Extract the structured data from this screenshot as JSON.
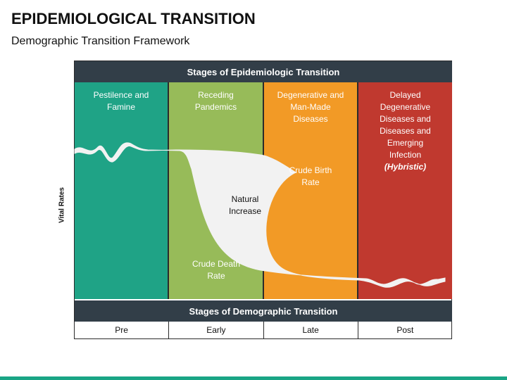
{
  "header": {
    "title": "EPIDEMIOLOGICAL TRANSITION",
    "subtitle": "Demographic Transition Framework"
  },
  "diagram": {
    "y_axis_label": "Vital Rates",
    "top_band": "Stages of Epidemiologic Transition",
    "bottom_band": "Stages of Demographic Transition",
    "epidemiologic_stages": [
      {
        "label": "Pestilence and Famine",
        "color": "#1fa386"
      },
      {
        "label": "Receding Pandemics",
        "color": "#97bb59"
      },
      {
        "label": "Degenerative and Man-Made Diseases",
        "color": "#f29a26"
      },
      {
        "label": "Delayed Degenerative Diseases and Diseases and Emerging Infection",
        "note": "(Hybristic)",
        "color": "#c0392f"
      }
    ],
    "curve_labels": {
      "birth_rate": "Crude Birth Rate",
      "natural_increase": "Natural Increase",
      "death_rate": "Crude Death Rate"
    },
    "demographic_stages": [
      "Pre",
      "Early",
      "Late",
      "Post"
    ],
    "band_color": "#323e48",
    "curve_fill": "#f2f2f2",
    "accent": "#1aa585"
  }
}
